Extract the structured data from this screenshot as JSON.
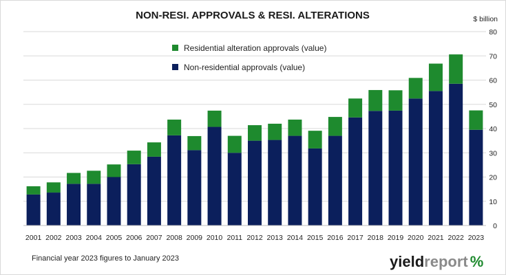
{
  "chart_data": {
    "type": "bar",
    "stacked": true,
    "title": "NON-RESI. APPROVALS & RESI. ALTERATIONS",
    "y_unit_label": "$ billion",
    "ylim": [
      0,
      80
    ],
    "y_ticks": [
      0,
      10,
      20,
      30,
      40,
      50,
      60,
      70,
      80
    ],
    "grid": true,
    "legend_position": "top-center",
    "categories": [
      "2001",
      "2002",
      "2003",
      "2004",
      "2005",
      "2006",
      "2007",
      "2008",
      "2009",
      "2010",
      "2011",
      "2012",
      "2013",
      "2014",
      "2015",
      "2016",
      "2017",
      "2018",
      "2019",
      "2020",
      "2021",
      "2022",
      "2023"
    ],
    "series": [
      {
        "name": "Non-residential approvals (value)",
        "color": "#0b1f5c",
        "values": [
          12.8,
          13.6,
          17.2,
          17.2,
          20.0,
          25.3,
          28.4,
          37.2,
          31.1,
          40.7,
          30.0,
          35.0,
          35.3,
          37.0,
          31.8,
          37.0,
          44.6,
          47.3,
          47.4,
          52.4,
          55.5,
          58.5,
          39.5
        ]
      },
      {
        "name": "Residential alteration approvals (value)",
        "color": "#1e8a2e",
        "values": [
          3.4,
          4.2,
          4.5,
          5.4,
          5.2,
          5.6,
          5.9,
          6.5,
          5.8,
          6.7,
          7.0,
          6.4,
          6.7,
          6.7,
          7.3,
          7.8,
          7.8,
          8.6,
          8.4,
          8.5,
          11.3,
          12.1,
          8.0
        ]
      }
    ],
    "footnote": "Financial year 2023 figures to January 2023"
  },
  "brand": {
    "name_part1": "yield",
    "name_part2": "report",
    "symbol": "%",
    "colors": {
      "dark": "#1a1a1a",
      "light": "#8a8a8a",
      "symbol_green": "#1e8a2e",
      "symbol_red": "#d62c2c"
    }
  },
  "icons": {
    "logo": "yieldreport-logo"
  }
}
